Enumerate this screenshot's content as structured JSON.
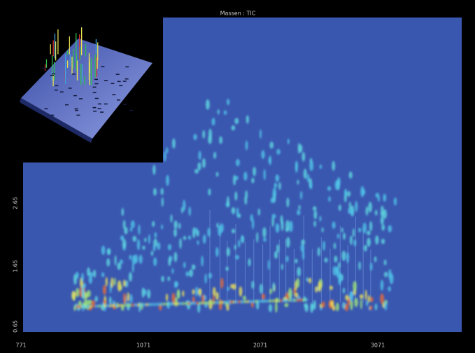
{
  "title": "Massen : TIC",
  "x_axis": {
    "ticks": [
      "771",
      "1071",
      "2071",
      "3071"
    ]
  },
  "y_axis": {
    "ticks": [
      "2.65",
      "1.65",
      "0.65"
    ]
  }
}
